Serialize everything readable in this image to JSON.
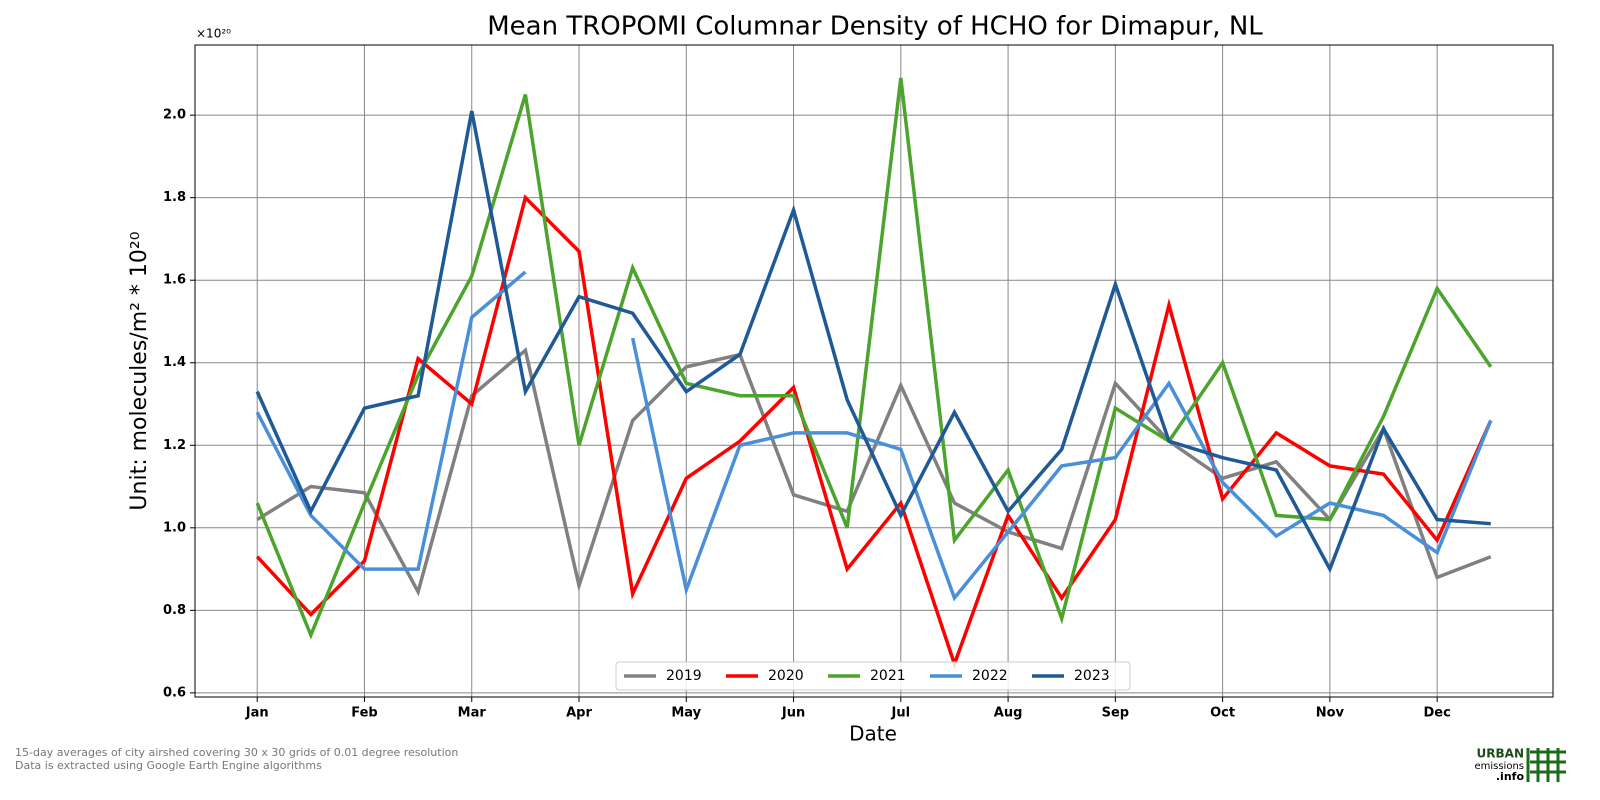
{
  "chart_data": {
    "type": "line",
    "title": "Mean TROPOMI Columnar Density of HCHO for Dimapur, NL",
    "x_label": "Date",
    "y_label": "Unit: molecules/m² * 10²⁰",
    "y_offset_label": "×10²⁰",
    "categories": [
      "Jan",
      null,
      "Feb",
      null,
      "Mar",
      null,
      "Apr",
      null,
      "May",
      null,
      "Jun",
      null,
      "Jul",
      null,
      "Aug",
      null,
      "Sep",
      null,
      "Oct",
      null,
      "Nov",
      null,
      "Dec",
      null
    ],
    "series": [
      {
        "name": "2019",
        "color": "#808080",
        "values": [
          1.02,
          1.1,
          1.085,
          0.845,
          1.32,
          1.43,
          0.86,
          1.26,
          1.39,
          1.42,
          1.08,
          1.04,
          1.345,
          1.06,
          0.99,
          0.95,
          1.35,
          1.21,
          1.12,
          1.16,
          1.02,
          1.24,
          0.88,
          0.93
        ]
      },
      {
        "name": "2020",
        "color": "#ff0000",
        "values": [
          0.93,
          0.79,
          0.92,
          1.41,
          1.3,
          1.8,
          1.67,
          0.84,
          1.12,
          1.21,
          1.34,
          0.9,
          1.06,
          0.67,
          1.03,
          0.83,
          1.02,
          1.54,
          1.07,
          1.23,
          1.15,
          1.13,
          0.97,
          1.26
        ]
      },
      {
        "name": "2021",
        "color": "#4ca42c",
        "values": [
          1.06,
          0.74,
          1.06,
          1.37,
          1.61,
          2.05,
          1.2,
          1.63,
          1.35,
          1.32,
          1.32,
          1.0,
          2.09,
          0.97,
          1.14,
          0.78,
          1.29,
          1.21,
          1.4,
          1.03,
          1.02,
          1.27,
          1.58,
          1.39
        ]
      },
      {
        "name": "2022",
        "color": "#4a90d9",
        "values": [
          1.28,
          1.03,
          0.9,
          0.9,
          1.51,
          1.62,
          null,
          1.46,
          0.85,
          1.2,
          1.23,
          1.23,
          1.19,
          0.83,
          0.99,
          1.15,
          1.17,
          1.35,
          1.11,
          0.98,
          1.06,
          1.03,
          0.94,
          1.26
        ]
      },
      {
        "name": "2023",
        "color": "#1f5a96",
        "values": [
          1.33,
          1.04,
          1.29,
          1.32,
          2.01,
          1.33,
          1.56,
          1.52,
          1.33,
          1.42,
          1.77,
          1.31,
          1.03,
          1.28,
          1.04,
          1.19,
          1.59,
          1.21,
          1.17,
          1.14,
          0.9,
          1.24,
          1.02,
          1.01
        ]
      }
    ],
    "ylim": [
      0.59,
      2.17
    ],
    "yticks": [
      0.6,
      0.8,
      {
        "value": 1,
        "label": "1.0"
      },
      1.2,
      1.4,
      1.6,
      1.8,
      {
        "value": 2,
        "label": "2.0"
      }
    ],
    "grid": true,
    "legend": "bottom",
    "footnotes": [
      "15-day averages of city airshed covering 30 x 30 grids of 0.01 degree resolution",
      "Data is extracted using Google Earth Engine algorithms"
    ],
    "logo": [
      "URBAN",
      "emissions",
      ".info"
    ]
  }
}
